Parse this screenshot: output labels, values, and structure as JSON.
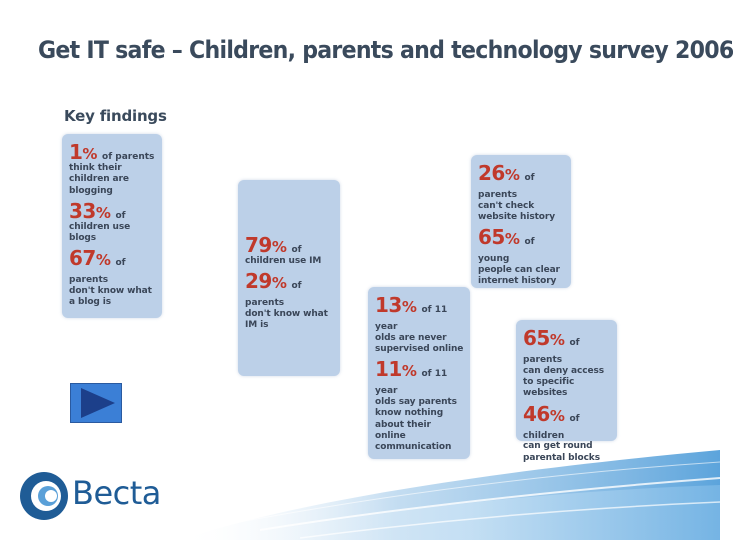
{
  "slide": {
    "title": "Get IT safe – Children, parents and technology survey 2006",
    "subtitle": "Key findings"
  },
  "cards": [
    {
      "stats": [
        {
          "value": "1",
          "unit": "%",
          "inline": "of parents",
          "text": "think their children are blogging"
        },
        {
          "value": "33",
          "unit": "%",
          "inline": "of",
          "text": "children use blogs"
        },
        {
          "value": "67",
          "unit": "%",
          "inline": "of parents",
          "text": "don't know what a blog is"
        }
      ]
    },
    {
      "stats": [
        {
          "value": "79",
          "unit": "%",
          "inline": "of",
          "text": "children use IM"
        },
        {
          "value": "29",
          "unit": "%",
          "inline": "of parents",
          "text": "don't know what IM is"
        }
      ]
    },
    {
      "stats": [
        {
          "value": "26",
          "unit": "%",
          "inline": "of parents",
          "text": "can't check website history"
        },
        {
          "value": "65",
          "unit": "%",
          "inline": "of young",
          "text": "people can clear internet history"
        }
      ]
    },
    {
      "stats": [
        {
          "value": "13",
          "unit": "%",
          "inline": "of 11 year",
          "text": "olds are never supervised online"
        },
        {
          "value": "11",
          "unit": "%",
          "inline": "of 11 year",
          "text": "olds say parents know nothing about their online communication"
        }
      ]
    },
    {
      "stats": [
        {
          "value": "65",
          "unit": "%",
          "inline": "of parents",
          "text": "can deny access to specific websites"
        },
        {
          "value": "46",
          "unit": "%",
          "inline": "of children",
          "text": "can get round parental blocks"
        }
      ]
    }
  ],
  "logo": {
    "text": "Becta",
    "icon": "becta-logo-icon"
  },
  "nav": {
    "play_icon": "play-icon"
  },
  "colors": {
    "title": "#3a4a5c",
    "card_bg": "#bcd0e8",
    "percent": "#c0392b",
    "brand_blue": "#1f5c96",
    "button": "#3b7fd6"
  }
}
